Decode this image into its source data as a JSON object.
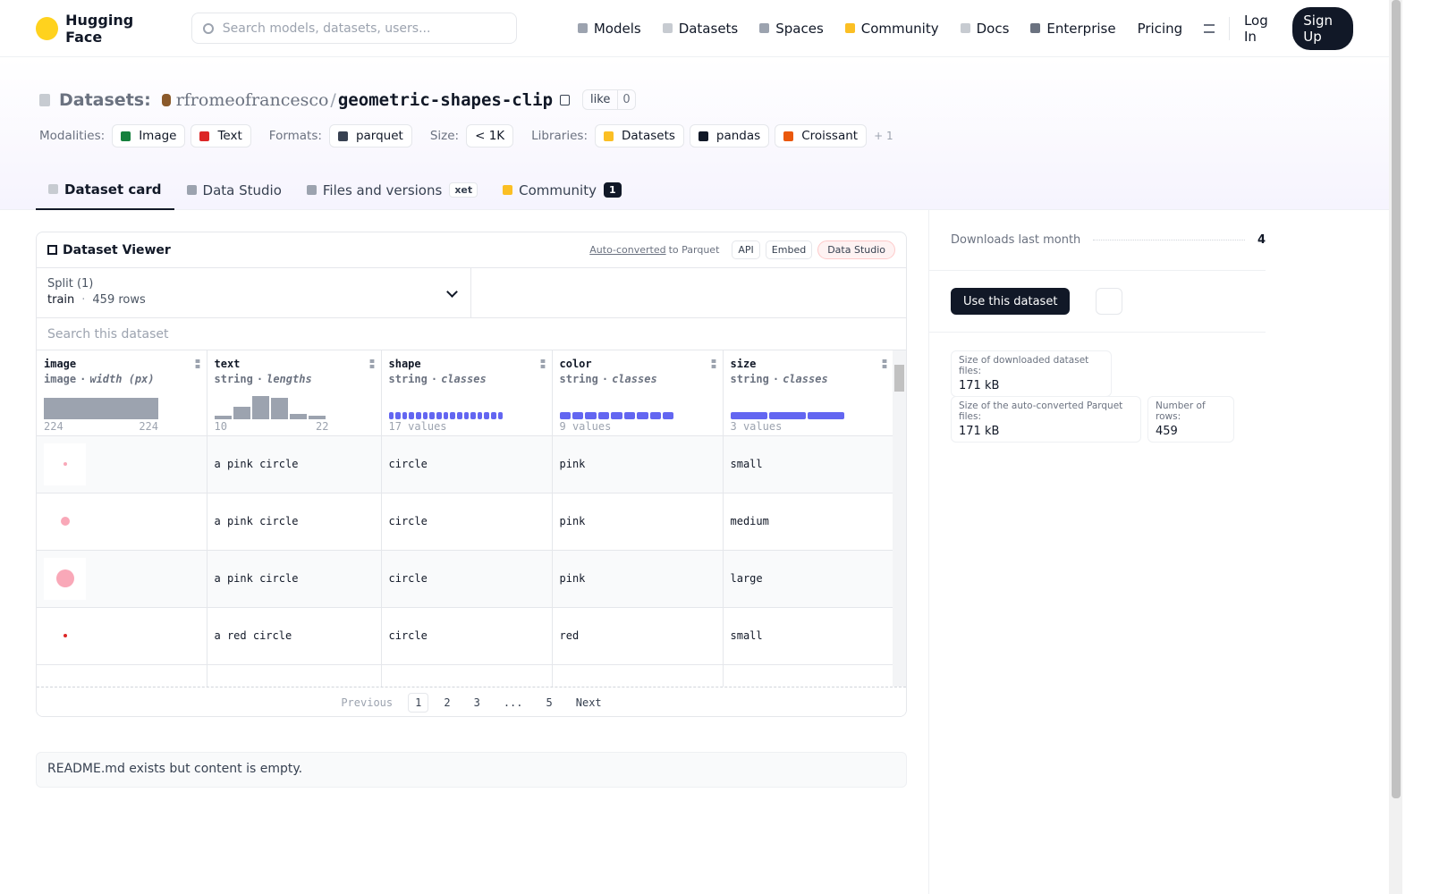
{
  "nav": {
    "brand": "Hugging Face",
    "search_placeholder": "Search models, datasets, users...",
    "links": [
      "Models",
      "Datasets",
      "Spaces",
      "Community",
      "Docs",
      "Enterprise",
      "Pricing"
    ],
    "login": "Log In",
    "signup": "Sign Up"
  },
  "header": {
    "prefix": "Datasets:",
    "owner": "rfromeofrancesco",
    "separator": "/",
    "name": "geometric-shapes-clip",
    "like": "like",
    "likes": 0,
    "tag_groups": [
      {
        "label": "Modalities:",
        "items": [
          "Image",
          "Text"
        ]
      },
      {
        "label": "Formats:",
        "items": [
          "parquet"
        ]
      },
      {
        "label": "Size:",
        "items": [
          "< 1K"
        ]
      },
      {
        "label": "Libraries:",
        "items": [
          "Datasets",
          "pandas",
          "Croissant"
        ]
      }
    ],
    "more": "+ 1"
  },
  "tabs": [
    {
      "label": "Dataset card"
    },
    {
      "label": "Data Studio"
    },
    {
      "label": "Files and versions",
      "badge": "xet"
    },
    {
      "label": "Community",
      "badge": 1
    }
  ],
  "viewer": {
    "title": "Dataset Viewer",
    "auto_converted": "Auto-converted",
    "to_parquet": "to Parquet",
    "buttons": [
      "API",
      "Embed",
      "Data Studio"
    ],
    "split_label": "Split (1)",
    "split": "train",
    "split_sep": "·",
    "rows_count": "459 rows",
    "search_placeholder": "Search this dataset",
    "columns": [
      {
        "name": "image",
        "type": "image",
        "stat": "width (px)",
        "min": "224",
        "max": "224"
      },
      {
        "name": "text",
        "type": "string",
        "stat": "lengths",
        "min": "10",
        "max": "22"
      },
      {
        "name": "shape",
        "type": "string",
        "stat": "classes",
        "summary": "17 values"
      },
      {
        "name": "color",
        "type": "string",
        "stat": "classes",
        "summary": "9 values"
      },
      {
        "name": "size",
        "type": "string",
        "stat": "classes",
        "summary": "3 values"
      }
    ],
    "rows": [
      [
        "a pink circle",
        "circle",
        "pink",
        "small"
      ],
      [
        "a pink circle",
        "circle",
        "pink",
        "medium"
      ],
      [
        "a pink circle",
        "circle",
        "pink",
        "large"
      ],
      [
        "a red circle",
        "circle",
        "red",
        "small"
      ]
    ],
    "pagination": {
      "previous": "Previous",
      "pages": [
        "1",
        "2",
        "3",
        "...",
        "5"
      ],
      "next": "Next"
    }
  },
  "readme": "README.md exists but content is empty.",
  "sidebar": {
    "downloads_label": "Downloads last month",
    "downloads": 4,
    "use_button": "Use this dataset",
    "stats": [
      {
        "label": "Size of downloaded dataset files:",
        "value": "171 kB"
      },
      {
        "label": "Size of the auto-converted Parquet files:",
        "value": "171 kB"
      },
      {
        "label": "Number of rows:",
        "value": "459"
      }
    ]
  }
}
